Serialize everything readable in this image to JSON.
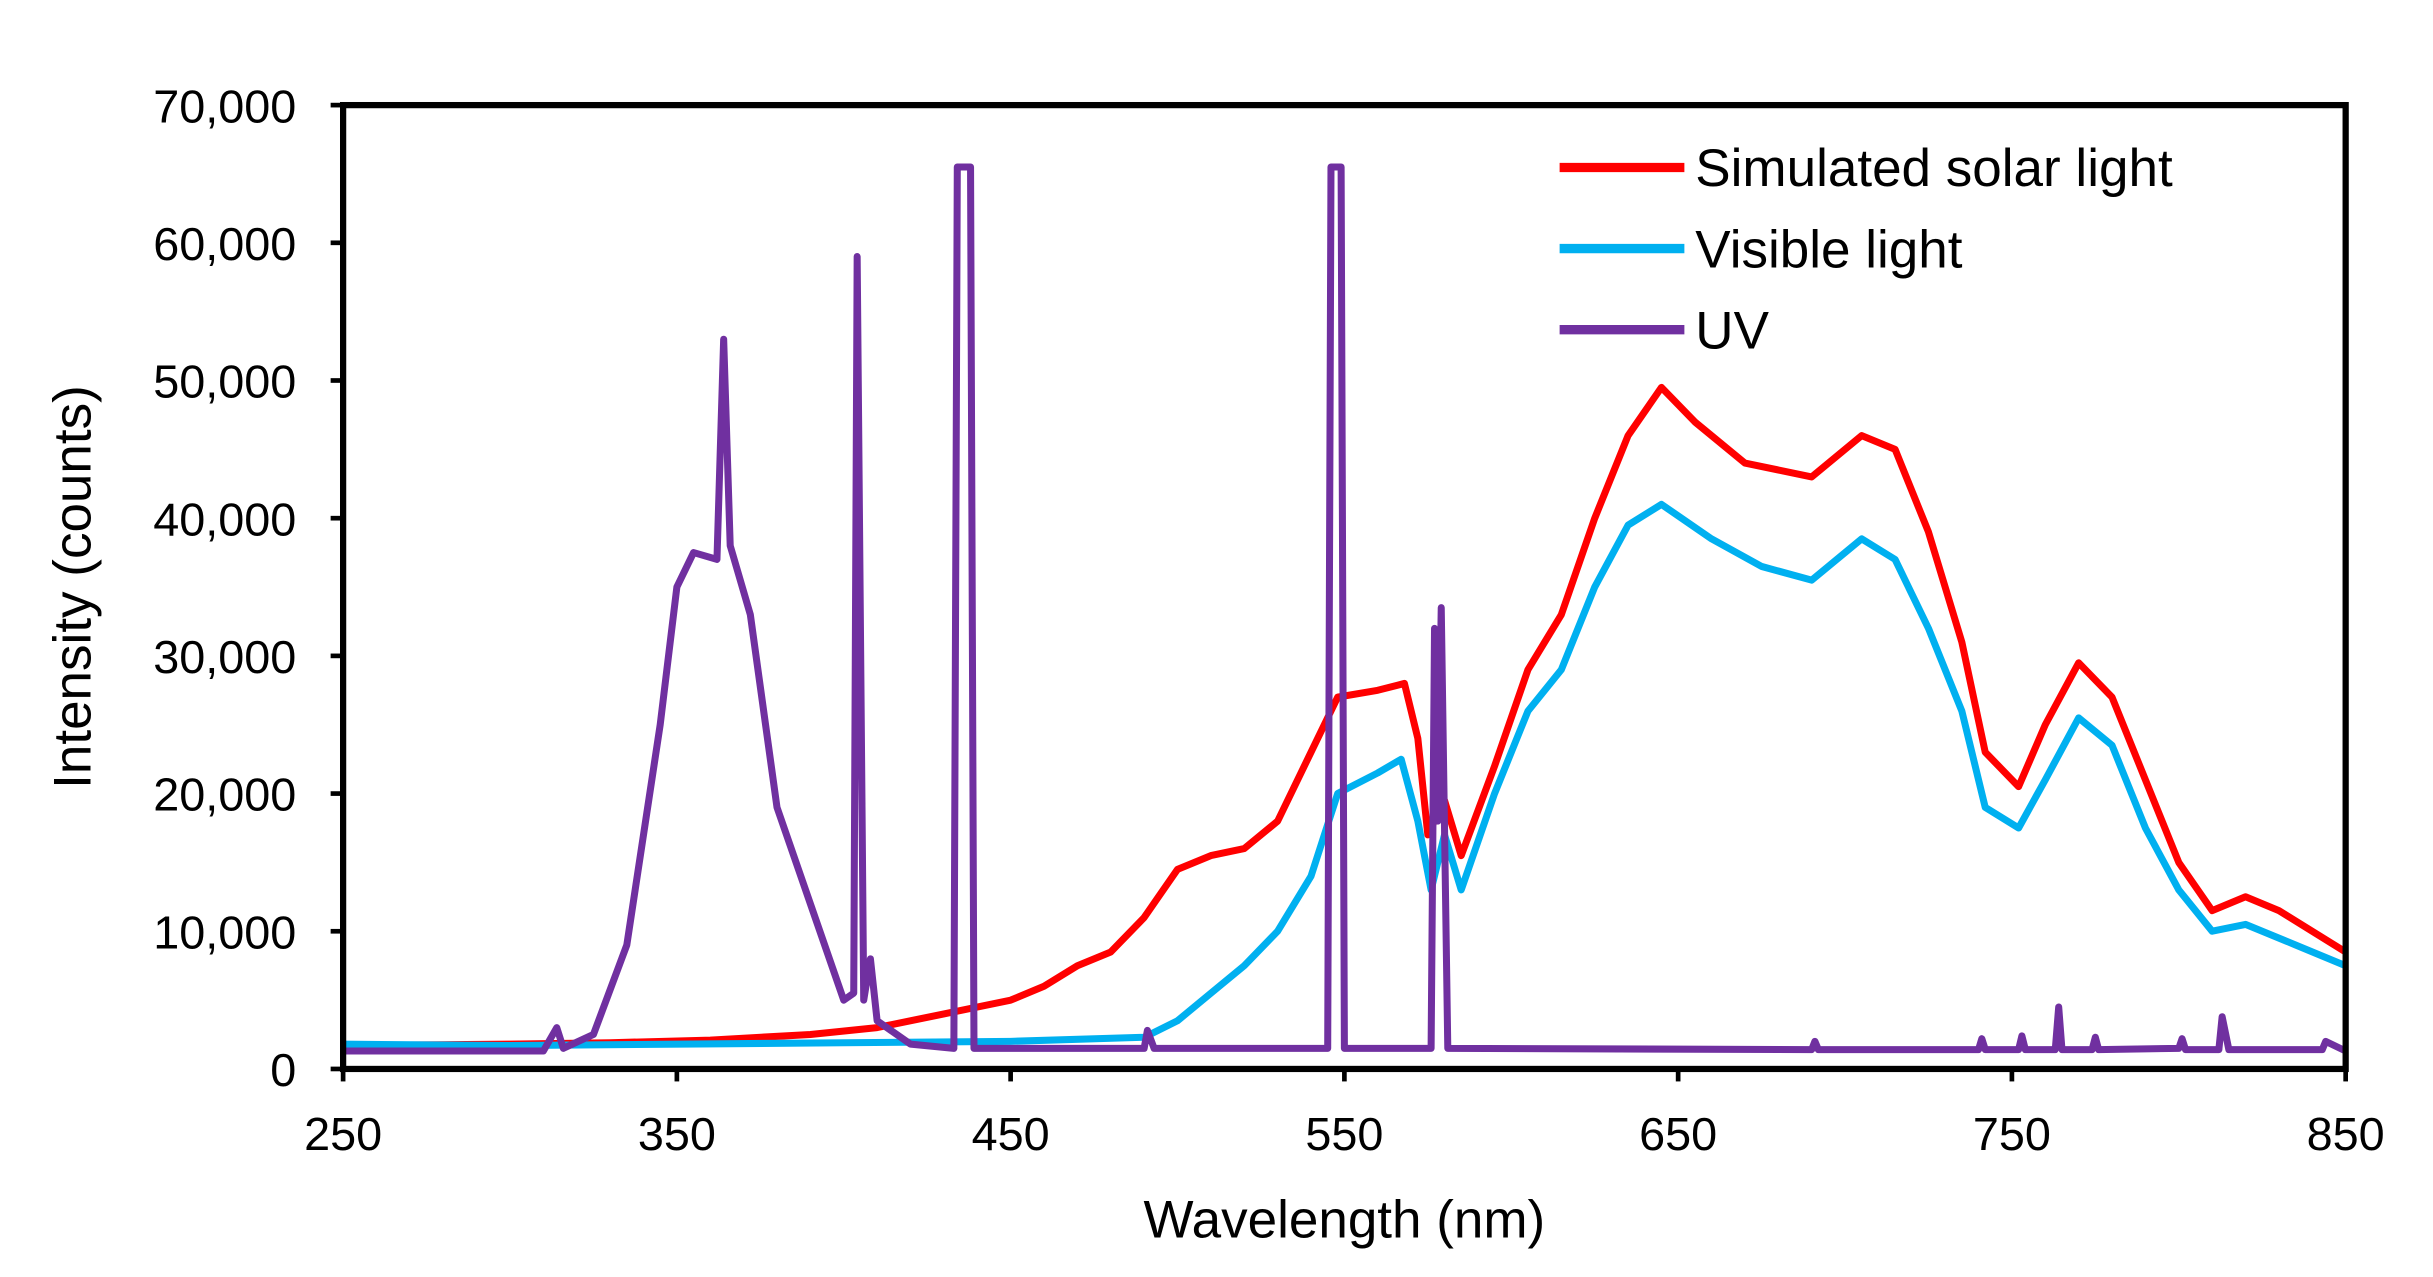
{
  "chart_data": {
    "type": "line",
    "title": "",
    "xlabel": "Wavelength (nm)",
    "ylabel": "Intensity (counts)",
    "xlim": [
      250,
      850
    ],
    "ylim": [
      0,
      70000
    ],
    "xticks": [
      "250",
      "350",
      "450",
      "550",
      "650",
      "750",
      "850"
    ],
    "xtick_values": [
      250,
      350,
      450,
      550,
      650,
      750,
      850
    ],
    "yticks": [
      "0",
      "10,000",
      "20,000",
      "30,000",
      "40,000",
      "50,000",
      "60,000",
      "70,000"
    ],
    "ytick_values": [
      0,
      10000,
      20000,
      30000,
      40000,
      50000,
      60000,
      70000
    ],
    "grid": false,
    "legend_position": "top-right",
    "series": [
      {
        "name": "Simulated solar light",
        "color": "#ff0000",
        "x": [
          250,
          300,
          330,
          360,
          390,
          410,
          430,
          450,
          460,
          470,
          480,
          490,
          500,
          510,
          520,
          530,
          540,
          548,
          560,
          568,
          572,
          575,
          580,
          585,
          595,
          605,
          615,
          625,
          635,
          645,
          655,
          670,
          690,
          705,
          715,
          725,
          735,
          742,
          752,
          760,
          770,
          780,
          790,
          800,
          810,
          820,
          830,
          850
        ],
        "y": [
          1700,
          1800,
          1900,
          2100,
          2500,
          3000,
          4000,
          5000,
          6000,
          7500,
          8500,
          11000,
          14500,
          15500,
          16000,
          18000,
          23000,
          27000,
          27500,
          28000,
          24000,
          17000,
          19500,
          15500,
          22000,
          29000,
          33000,
          40000,
          46000,
          49500,
          47000,
          44000,
          43000,
          46000,
          45000,
          39000,
          31000,
          23000,
          20500,
          25000,
          29500,
          27000,
          21000,
          15000,
          11500,
          12500,
          11500,
          8500
        ]
      },
      {
        "name": "Visible light",
        "color": "#00b0f0",
        "x": [
          250,
          300,
          400,
          450,
          490,
          500,
          510,
          520,
          530,
          540,
          548,
          560,
          567,
          572,
          576,
          580,
          585,
          595,
          605,
          615,
          625,
          635,
          645,
          660,
          675,
          690,
          705,
          715,
          725,
          735,
          742,
          752,
          760,
          770,
          780,
          790,
          800,
          810,
          820,
          835,
          850
        ],
        "y": [
          1800,
          1700,
          1900,
          2000,
          2300,
          3500,
          5500,
          7500,
          10000,
          14000,
          20000,
          21500,
          22500,
          18000,
          13000,
          17000,
          13000,
          20000,
          26000,
          29000,
          35000,
          39500,
          41000,
          38500,
          36500,
          35500,
          38500,
          37000,
          32000,
          26000,
          19000,
          17500,
          21000,
          25500,
          23500,
          17500,
          13000,
          10000,
          10500,
          9000,
          7500
        ]
      },
      {
        "name": "UV",
        "color": "#7030a0",
        "x": [
          250,
          310,
          314,
          316,
          325,
          335,
          345,
          350,
          355,
          362,
          364,
          366,
          372,
          380,
          390,
          400,
          403,
          404,
          406,
          408,
          410,
          420,
          433,
          434,
          438,
          439,
          450,
          490,
          491,
          493,
          545,
          546,
          549,
          550,
          576,
          577,
          578,
          579,
          581,
          690,
          691,
          692,
          740,
          741,
          742,
          752,
          753,
          754,
          763,
          764,
          765,
          774,
          775,
          776,
          800,
          801,
          802,
          812,
          813,
          815,
          843,
          844,
          850
        ],
        "y": [
          1300,
          1300,
          3000,
          1500,
          2500,
          9000,
          25000,
          35000,
          37500,
          37000,
          53000,
          38000,
          33000,
          19000,
          12000,
          5000,
          5500,
          59000,
          5000,
          8000,
          3500,
          1800,
          1500,
          65500,
          65500,
          1500,
          1500,
          1500,
          2800,
          1500,
          1500,
          65500,
          65500,
          1500,
          1500,
          32000,
          18000,
          33500,
          1500,
          1400,
          2000,
          1400,
          1400,
          2200,
          1400,
          1400,
          2400,
          1400,
          1400,
          4500,
          1400,
          1400,
          2300,
          1400,
          1500,
          2200,
          1400,
          1400,
          3800,
          1400,
          1400,
          2000,
          1300
        ]
      }
    ]
  }
}
